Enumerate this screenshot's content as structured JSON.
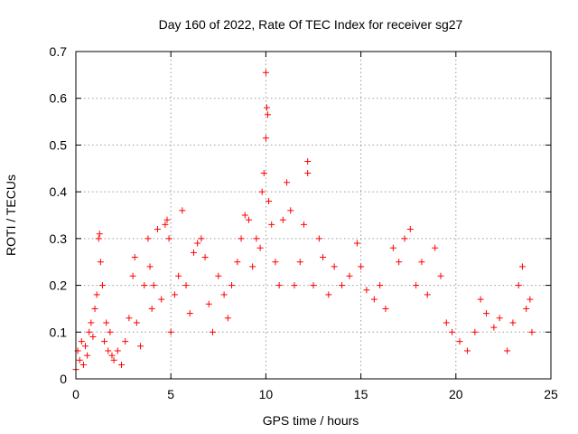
{
  "chart_data": {
    "type": "scatter",
    "title": "Day 160 of 2022, Rate Of TEC Index for receiver sg27",
    "xlabel": "GPS time / hours",
    "ylabel": "ROTI / TECUs",
    "xlim": [
      0,
      25
    ],
    "ylim": [
      0,
      0.7
    ],
    "xticks": [
      0,
      5,
      10,
      15,
      20,
      25
    ],
    "yticks": [
      0,
      0.1,
      0.2,
      0.3,
      0.4,
      0.5,
      0.6,
      0.7
    ],
    "xtick_labels": [
      "0",
      "5",
      "10",
      "15",
      "20",
      "25"
    ],
    "ytick_labels": [
      "0",
      "0.1",
      "0.2",
      "0.3",
      "0.4",
      "0.5",
      "0.6",
      "0.7"
    ],
    "grid": true,
    "marker": "plus",
    "marker_color": "#ff0000",
    "points": [
      [
        0.0,
        0.02
      ],
      [
        0.1,
        0.06
      ],
      [
        0.2,
        0.04
      ],
      [
        0.3,
        0.08
      ],
      [
        0.4,
        0.03
      ],
      [
        0.5,
        0.07
      ],
      [
        0.6,
        0.05
      ],
      [
        0.7,
        0.1
      ],
      [
        0.8,
        0.12
      ],
      [
        0.9,
        0.09
      ],
      [
        1.0,
        0.15
      ],
      [
        1.1,
        0.18
      ],
      [
        1.2,
        0.3
      ],
      [
        1.3,
        0.25
      ],
      [
        1.25,
        0.31
      ],
      [
        1.4,
        0.2
      ],
      [
        1.5,
        0.08
      ],
      [
        1.6,
        0.12
      ],
      [
        1.7,
        0.06
      ],
      [
        1.8,
        0.1
      ],
      [
        1.9,
        0.05
      ],
      [
        2.0,
        0.04
      ],
      [
        2.2,
        0.06
      ],
      [
        2.4,
        0.03
      ],
      [
        2.6,
        0.08
      ],
      [
        2.8,
        0.13
      ],
      [
        3.0,
        0.22
      ],
      [
        3.1,
        0.26
      ],
      [
        3.2,
        0.12
      ],
      [
        3.4,
        0.07
      ],
      [
        3.6,
        0.2
      ],
      [
        3.8,
        0.3
      ],
      [
        3.9,
        0.24
      ],
      [
        4.0,
        0.15
      ],
      [
        4.1,
        0.2
      ],
      [
        4.3,
        0.32
      ],
      [
        4.5,
        0.17
      ],
      [
        4.7,
        0.33
      ],
      [
        4.8,
        0.34
      ],
      [
        4.9,
        0.3
      ],
      [
        5.0,
        0.1
      ],
      [
        5.2,
        0.18
      ],
      [
        5.4,
        0.22
      ],
      [
        5.6,
        0.36
      ],
      [
        5.8,
        0.2
      ],
      [
        6.0,
        0.14
      ],
      [
        6.2,
        0.27
      ],
      [
        6.4,
        0.29
      ],
      [
        6.6,
        0.3
      ],
      [
        6.8,
        0.26
      ],
      [
        7.0,
        0.16
      ],
      [
        7.2,
        0.1
      ],
      [
        7.5,
        0.22
      ],
      [
        7.8,
        0.18
      ],
      [
        8.0,
        0.13
      ],
      [
        8.2,
        0.2
      ],
      [
        8.5,
        0.25
      ],
      [
        8.7,
        0.3
      ],
      [
        8.9,
        0.35
      ],
      [
        9.1,
        0.34
      ],
      [
        9.3,
        0.24
      ],
      [
        9.5,
        0.3
      ],
      [
        9.7,
        0.28
      ],
      [
        9.8,
        0.4
      ],
      [
        9.9,
        0.44
      ],
      [
        10.0,
        0.655
      ],
      [
        10.05,
        0.58
      ],
      [
        10.1,
        0.565
      ],
      [
        10.0,
        0.515
      ],
      [
        10.15,
        0.38
      ],
      [
        10.3,
        0.33
      ],
      [
        10.5,
        0.25
      ],
      [
        10.7,
        0.2
      ],
      [
        10.9,
        0.34
      ],
      [
        11.1,
        0.42
      ],
      [
        11.3,
        0.36
      ],
      [
        11.5,
        0.2
      ],
      [
        11.8,
        0.25
      ],
      [
        12.0,
        0.33
      ],
      [
        12.2,
        0.465
      ],
      [
        12.2,
        0.44
      ],
      [
        12.5,
        0.2
      ],
      [
        12.8,
        0.3
      ],
      [
        13.0,
        0.26
      ],
      [
        13.3,
        0.18
      ],
      [
        13.6,
        0.24
      ],
      [
        14.0,
        0.2
      ],
      [
        14.4,
        0.22
      ],
      [
        14.8,
        0.29
      ],
      [
        15.0,
        0.24
      ],
      [
        15.3,
        0.19
      ],
      [
        15.7,
        0.17
      ],
      [
        16.0,
        0.2
      ],
      [
        16.3,
        0.15
      ],
      [
        16.7,
        0.28
      ],
      [
        17.0,
        0.25
      ],
      [
        17.3,
        0.3
      ],
      [
        17.6,
        0.32
      ],
      [
        17.9,
        0.2
      ],
      [
        18.2,
        0.25
      ],
      [
        18.5,
        0.18
      ],
      [
        18.9,
        0.28
      ],
      [
        19.2,
        0.22
      ],
      [
        19.5,
        0.12
      ],
      [
        19.8,
        0.1
      ],
      [
        20.2,
        0.08
      ],
      [
        20.6,
        0.06
      ],
      [
        21.0,
        0.1
      ],
      [
        21.3,
        0.17
      ],
      [
        21.6,
        0.14
      ],
      [
        22.0,
        0.11
      ],
      [
        22.3,
        0.13
      ],
      [
        22.7,
        0.06
      ],
      [
        23.0,
        0.12
      ],
      [
        23.3,
        0.2
      ],
      [
        23.5,
        0.24
      ],
      [
        23.7,
        0.15
      ],
      [
        23.9,
        0.17
      ],
      [
        24.0,
        0.1
      ]
    ]
  }
}
